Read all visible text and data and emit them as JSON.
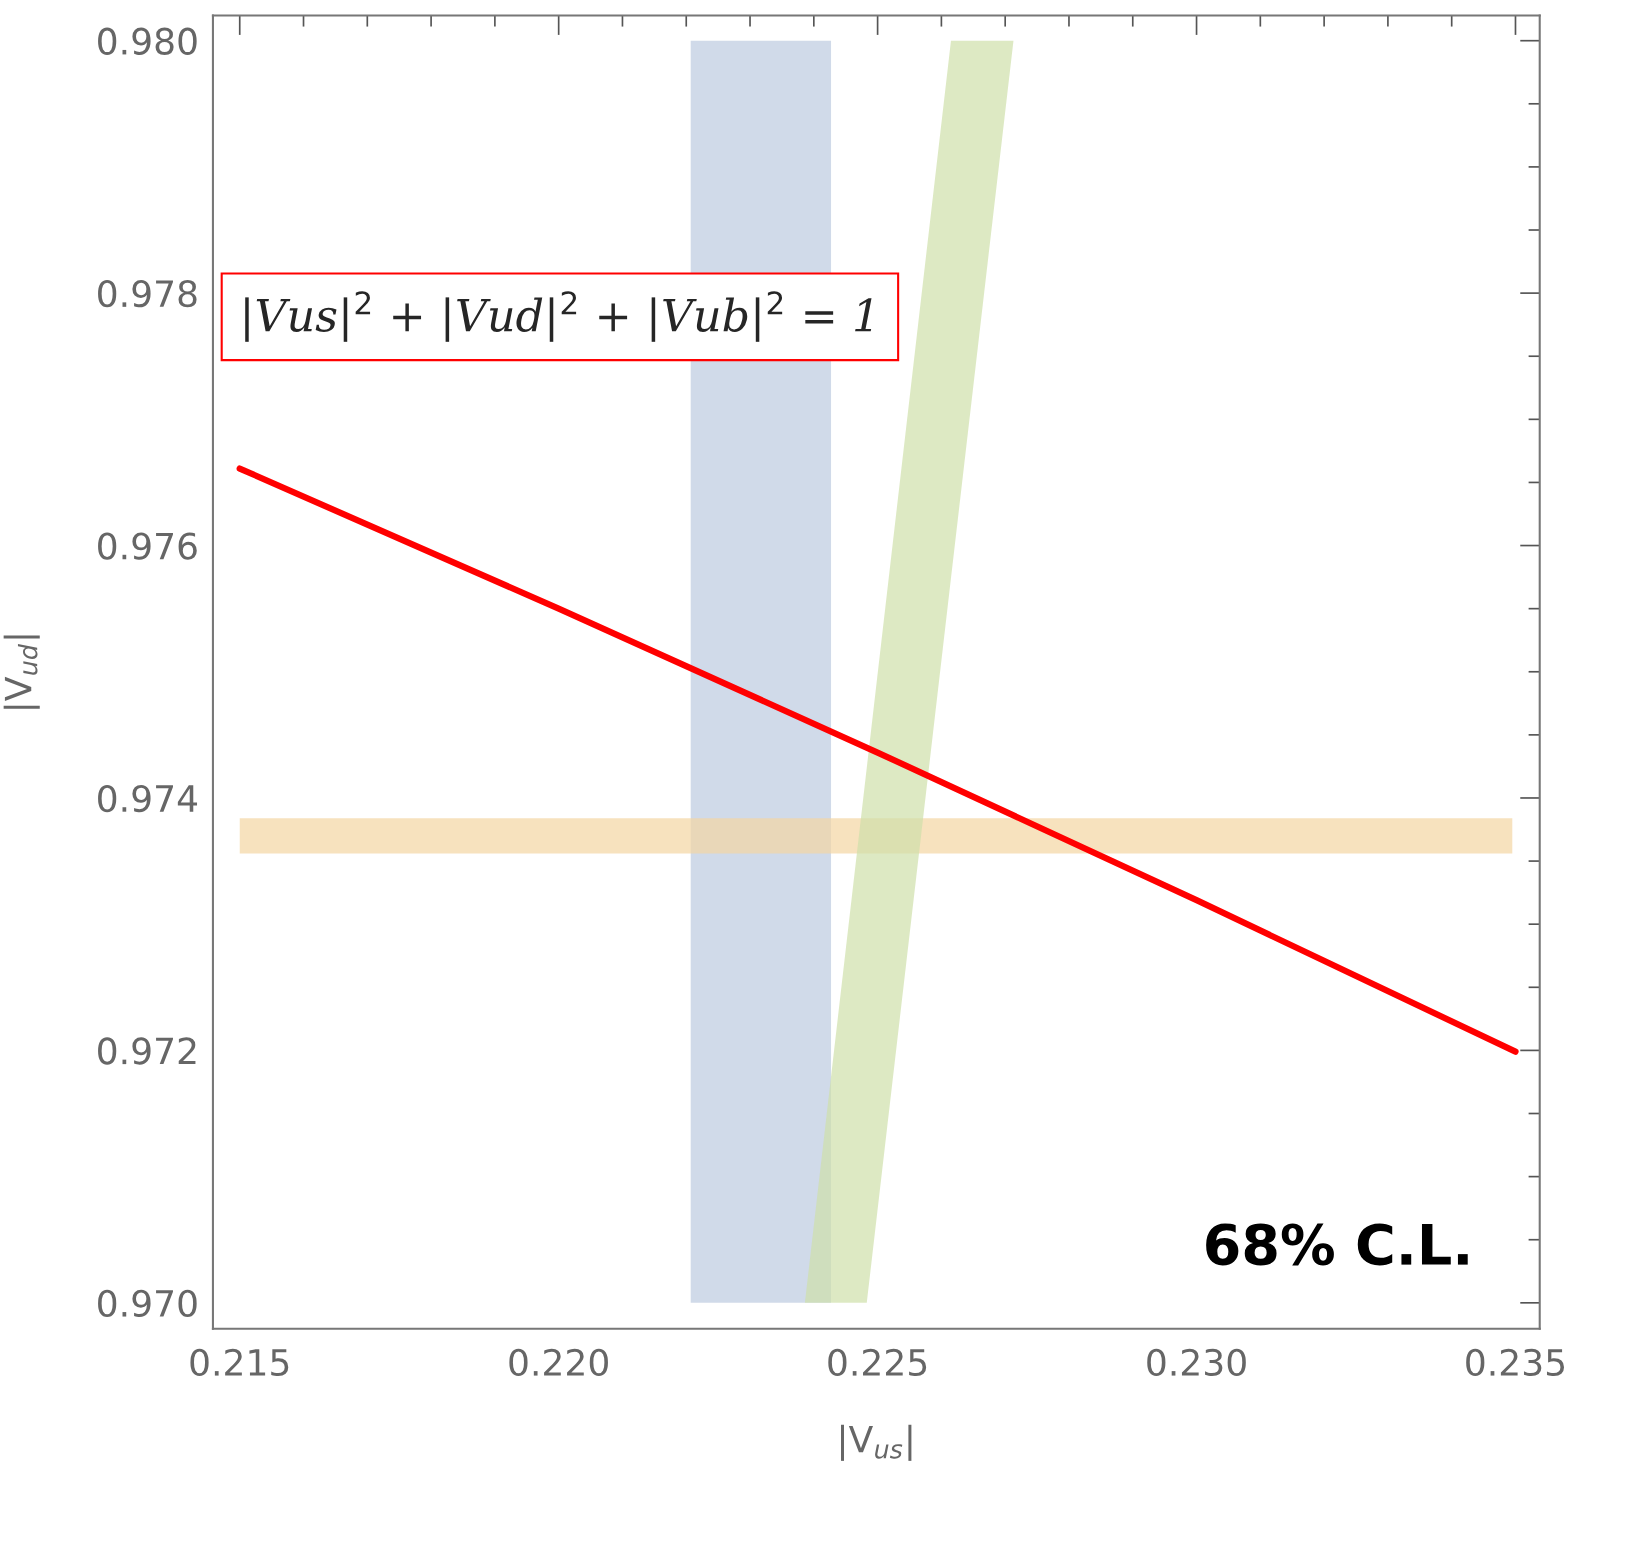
{
  "chart_data": {
    "type": "area",
    "xlabel": "|V$_{us}$|",
    "ylabel": "|V$_{ud}$|",
    "xlim": [
      0.21458,
      0.23538
    ],
    "ylim": [
      0.969795,
      0.9802
    ],
    "xticks": [
      0.215,
      {
        "value": 0.22,
        "label": "0.220"
      },
      0.225,
      {
        "value": 0.23,
        "label": "0.230"
      },
      0.235
    ],
    "yticks": [
      {
        "value": 0.97,
        "label": "0.970"
      },
      0.972,
      0.974,
      0.976,
      0.978,
      {
        "value": 0.98,
        "label": "0.980"
      }
    ],
    "grid": false,
    "series": [
      {
        "color": "#bccbe0",
        "x": [
          0.22207,
          0.22427
        ],
        "values": [
          null,
          null
        ],
        "lower": [
          0.97,
          0.97
        ],
        "upper": [
          0.98,
          0.98
        ]
      },
      {
        "color": "#f3d6a3",
        "x": [
          0.215,
          0.23495
        ],
        "values": [
          null,
          null
        ],
        "lower": [
          0.97356,
          0.97356
        ],
        "upper": [
          0.97384,
          0.97384
        ]
      },
      {
        "color": "#cfdfaa",
        "x": [
          0.22386,
          0.22483,
          0.22615,
          0.22713
        ],
        "values": [
          null,
          null,
          null,
          null
        ],
        "lower": [
          0.97,
          0.97,
          0.97574,
          0.98
        ],
        "upper": [
          0.97,
          0.97424,
          0.98,
          0.98
        ]
      },
      {
        "type": "line",
        "color": "#ff0000",
        "x": [
          0.215,
          0.22,
          0.225,
          0.23,
          0.235
        ],
        "values": [
          0.97661,
          0.9755,
          0.97436,
          0.97319,
          0.97199
        ]
      }
    ],
    "annotations": [
      "|Vus|$^{2}$ + |Vud|$^{2}$ + |Vub|$^{2}$ = 1",
      "68% C.L."
    ]
  }
}
